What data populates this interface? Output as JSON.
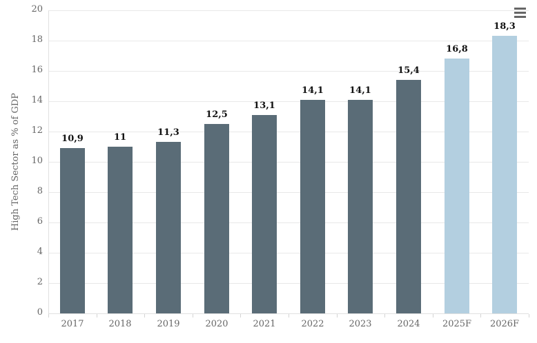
{
  "chart_data": {
    "type": "bar",
    "title": "",
    "xlabel": "",
    "ylabel": "High Tech Sector as % of GDP",
    "categories": [
      "2017",
      "2018",
      "2019",
      "2020",
      "2021",
      "2022",
      "2023",
      "2024",
      "2025F",
      "2026F"
    ],
    "values": [
      10.9,
      11,
      11.3,
      12.5,
      13.1,
      14.1,
      14.1,
      15.4,
      16.8,
      18.3
    ],
    "data_labels": [
      "10,9",
      "11",
      "11,3",
      "12,5",
      "13,1",
      "14,1",
      "14,1",
      "15,4",
      "16,8",
      "18,3"
    ],
    "forecast_flags": [
      false,
      false,
      false,
      false,
      false,
      false,
      false,
      false,
      true,
      true
    ],
    "ylim": [
      0,
      20
    ],
    "yticks": [
      0,
      2,
      4,
      6,
      8,
      10,
      12,
      14,
      16,
      18,
      20
    ],
    "grid": true,
    "legend_position": "none",
    "colors": {
      "bar_actual": "#5a6c77",
      "bar_forecast": "#b3cfe0",
      "gridline": "#e8e8e8",
      "axis_line": "#e0e0e0",
      "tick_mark": "#d4d4d4",
      "tick_label": "#666666",
      "axis_title": "#666666",
      "data_label": "#111111",
      "background": "#ffffff",
      "menu_icon": "#666666"
    }
  },
  "menu": {
    "icon": "hamburger-icon"
  }
}
